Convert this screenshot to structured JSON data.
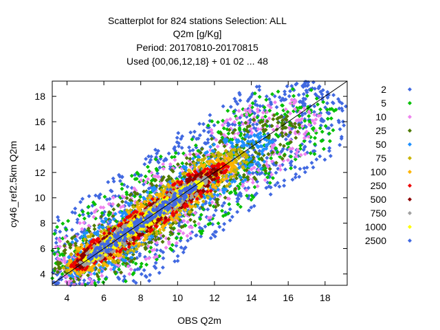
{
  "chart_data": {
    "type": "scatter",
    "title": [
      "Scatterplot for  824 stations Selection: ALL",
      "Q2m [g/Kg]",
      "Period: 20170810-20170815",
      "Used {00,06,12,18} + 01 02 ... 48"
    ],
    "xlabel": "OBS Q2m",
    "ylabel": "cy46_ref2.5km Q2m",
    "xlim": [
      3.2,
      19.2
    ],
    "ylim": [
      3.1,
      19.2
    ],
    "xticks": [
      4,
      6,
      8,
      10,
      12,
      14,
      16,
      18
    ],
    "yticks": [
      4,
      6,
      8,
      10,
      12,
      14,
      16,
      18
    ],
    "grid": false,
    "reference_line": "y = x",
    "legend_placement": "right",
    "legend": [
      {
        "label": "2",
        "color": "#4169e1"
      },
      {
        "label": "5",
        "color": "#00c000"
      },
      {
        "label": "10",
        "color": "#ee82ee"
      },
      {
        "label": "25",
        "color": "#4e7a00"
      },
      {
        "label": "50",
        "color": "#1e90ff"
      },
      {
        "label": "75",
        "color": "#c8b400"
      },
      {
        "label": "100",
        "color": "#ffb400"
      },
      {
        "label": "250",
        "color": "#ee0000"
      },
      {
        "label": "500",
        "color": "#8b0000"
      },
      {
        "label": "750",
        "color": "#a0a0a0"
      },
      {
        "label": "1000",
        "color": "#ffff00"
      },
      {
        "label": "2500",
        "color": "#4169e1"
      }
    ],
    "density_bands": [
      {
        "label": "2",
        "along": [
          3.3,
          18.3
        ],
        "half_width": 3.6
      },
      {
        "label": "5",
        "along": [
          3.4,
          18.0
        ],
        "half_width": 3.0
      },
      {
        "label": "10",
        "along": [
          3.6,
          17.2
        ],
        "half_width": 2.5
      },
      {
        "label": "25",
        "along": [
          3.8,
          16.2
        ],
        "half_width": 2.0
      },
      {
        "label": "50",
        "along": [
          4.0,
          14.8
        ],
        "half_width": 1.6
      },
      {
        "label": "75",
        "along": [
          4.1,
          13.6
        ],
        "half_width": 1.3
      },
      {
        "label": "100",
        "along": [
          4.2,
          13.0
        ],
        "half_width": 1.1
      },
      {
        "label": "250",
        "along": [
          4.4,
          12.6
        ],
        "half_width": 0.9
      },
      {
        "label": "500",
        "along": [
          4.6,
          12.2
        ],
        "half_width": 0.7
      },
      {
        "label": "750",
        "along": [
          4.8,
          11.6
        ],
        "half_width": 0.55
      },
      {
        "label": "1000",
        "along": [
          5.0,
          11.3
        ],
        "half_width": 0.45
      },
      {
        "label": "2500",
        "along": [
          5.2,
          11.0
        ],
        "half_width": 0.35
      }
    ]
  }
}
